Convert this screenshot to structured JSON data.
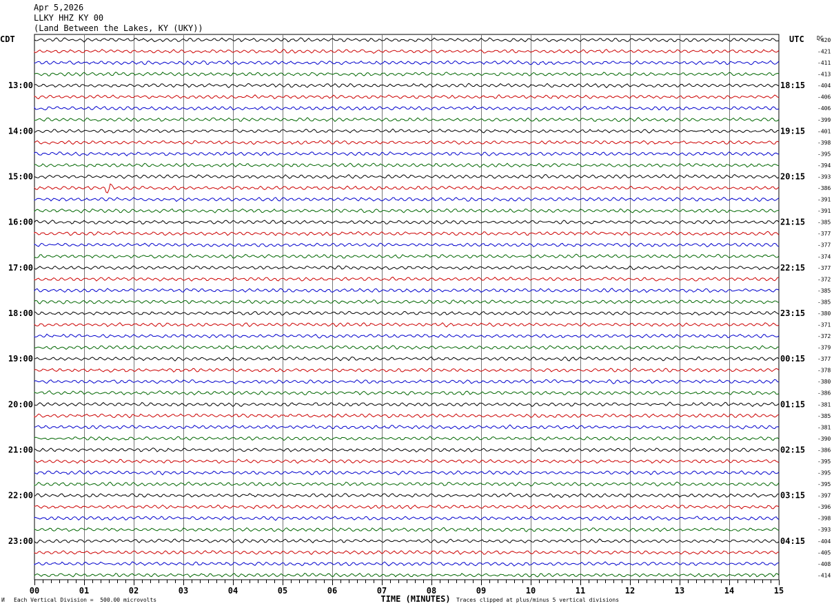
{
  "header": {
    "date": "Apr 5,2026",
    "station": "LLKY HHZ KY 00",
    "location": "(Land Between the Lakes, KY (UKY))"
  },
  "footer": {
    "scale_note": "Each Vertical Division =  500.00 microvolts",
    "clip_note": "Traces clipped at plus/minus 5 vertical divisions",
    "corner_mark": "И"
  },
  "chart_data": {
    "type": "line",
    "title": "LLKY HHZ KY 00",
    "xlabel": "TIME (MINUTES)",
    "left_label": "CDT",
    "right_label": "UTC",
    "dc_label": "DC",
    "xlim": [
      0,
      15
    ],
    "x_ticks": [
      "00",
      "01",
      "02",
      "03",
      "04",
      "05",
      "06",
      "07",
      "08",
      "09",
      "10",
      "11",
      "12",
      "13",
      "14",
      "15"
    ],
    "left_hour_labels": [
      "13:00",
      "14:00",
      "15:00",
      "16:00",
      "17:00",
      "18:00",
      "19:00",
      "20:00",
      "21:00",
      "22:00",
      "23:00"
    ],
    "right_hour_labels": [
      "18:15",
      "19:15",
      "20:15",
      "21:15",
      "22:15",
      "23:15",
      "00:15",
      "01:15",
      "02:15",
      "03:15",
      "04:15"
    ],
    "trace_colors": [
      "#000000",
      "#cc0000",
      "#0000cc",
      "#006600"
    ],
    "dc_offsets": [
      -420,
      -421,
      -411,
      -413,
      -404,
      -406,
      -406,
      -399,
      -401,
      -398,
      -395,
      -394,
      -393,
      -386,
      -391,
      -391,
      -385,
      -377,
      -377,
      -374,
      -377,
      -372,
      -385,
      -385,
      -380,
      -371,
      -372,
      -379,
      -377,
      -378,
      -380,
      -386,
      -381,
      -385,
      -381,
      -390,
      -386,
      -395,
      -395,
      -395,
      -397,
      -396,
      -398,
      -393,
      -404,
      -405,
      -408,
      -414
    ],
    "events": [
      {
        "trace": 13,
        "minute": 1.55,
        "color": "#cc0000"
      }
    ]
  }
}
